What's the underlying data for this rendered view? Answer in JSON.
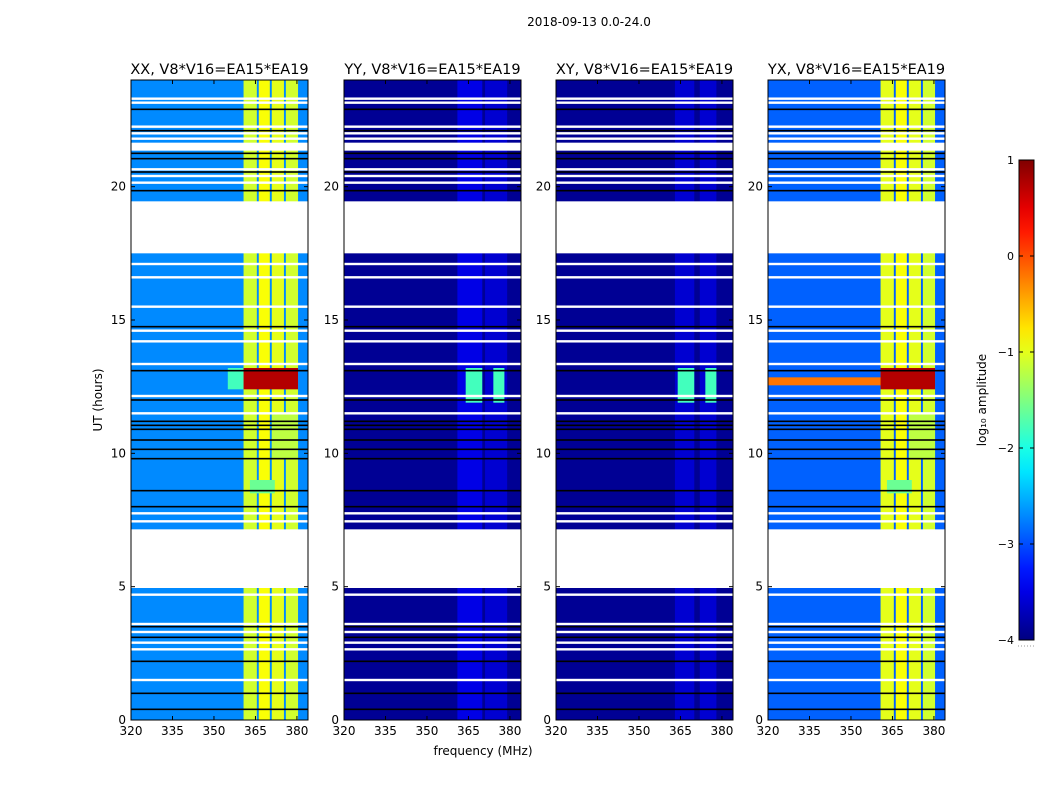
{
  "chart_data": {
    "type": "heatmap",
    "title": "2018-09-13 0.0-24.0",
    "xlabel": "frequency (MHz)",
    "ylabel": "UT (hours)",
    "xlim": [
      320,
      384
    ],
    "ylim": [
      0,
      24
    ],
    "xticks": [
      "320",
      "335",
      "350",
      "365",
      "380"
    ],
    "xtick_values": [
      320,
      335,
      350,
      365,
      380
    ],
    "yticks": [
      "0",
      "5",
      "10",
      "15",
      "20"
    ],
    "ytick_values": [
      0,
      5,
      10,
      15,
      20
    ],
    "colorbar": {
      "label": "log₁₀ amplitude",
      "range": [
        -4,
        1
      ],
      "ticks": [
        "1",
        "0",
        "−1",
        "−2",
        "−3",
        "−4"
      ],
      "tick_values": [
        1,
        0,
        -1,
        -2,
        -3,
        -4
      ],
      "colormap": "jet"
    },
    "time_gaps": [
      [
        17.5,
        19.45
      ],
      [
        4.95,
        7.15
      ],
      [
        21.35,
        21.65
      ]
    ],
    "flagged_white_lines": [
      23.3,
      23.15,
      22.25,
      22.0,
      21.8,
      20.65,
      20.4,
      20.15,
      17.1,
      16.6,
      15.5,
      14.6,
      14.2,
      13.35,
      12.15,
      11.5,
      7.75,
      7.45,
      4.7,
      3.6,
      3.3,
      2.9,
      2.65,
      1.5
    ],
    "flagged_black_lines": [
      22.9,
      22.1,
      21.25,
      21.05,
      20.55,
      19.85,
      14.75,
      13.1,
      12.0,
      11.2,
      11.05,
      10.9,
      10.5,
      10.15,
      9.8,
      8.6,
      8.0,
      3.5,
      3.1,
      2.2,
      1.0,
      0.4
    ],
    "panels": [
      {
        "title": "XX, V8*V16=EA15*EA19",
        "background_level": -2.7,
        "rfi_bands": [
          {
            "f": [
              360.7,
              365.5
            ],
            "level": -1.1
          },
          {
            "f": [
              366.2,
              370.2
            ],
            "level": -0.9
          },
          {
            "f": [
              370.9,
              375.3
            ],
            "level": -1.0
          },
          {
            "f": [
              376.0,
              380.4
            ],
            "level": -1.1
          }
        ],
        "events": [
          {
            "t": [
              12.4,
              13.2
            ],
            "f": [
              355,
              360.7
            ],
            "level": -1.8
          },
          {
            "t": [
              12.4,
              13.2
            ],
            "f": [
              360.7,
              380.4
            ],
            "level": 0.75
          },
          {
            "t": [
              8.5,
              9.0
            ],
            "f": [
              363,
              372
            ],
            "level": -1.6
          },
          {
            "t": [
              9.8,
              11.5
            ],
            "f": [
              371,
              380.4
            ],
            "level": -1.2
          }
        ]
      },
      {
        "title": "YY, V8*V16=EA15*EA19",
        "background_level": -3.9,
        "rfi_bands": [
          {
            "f": [
              361,
              370
            ],
            "level": -3.5
          },
          {
            "f": [
              371,
              379
            ],
            "level": -3.6
          }
        ],
        "events": [
          {
            "t": [
              11.9,
              13.2
            ],
            "f": [
              364,
              370
            ],
            "level": -1.8
          },
          {
            "t": [
              11.9,
              13.2
            ],
            "f": [
              374,
              378
            ],
            "level": -1.8
          }
        ]
      },
      {
        "title": "XY, V8*V16=EA15*EA19",
        "background_level": -3.9,
        "rfi_bands": [
          {
            "f": [
              363,
              370
            ],
            "level": -3.6
          },
          {
            "f": [
              372,
              378
            ],
            "level": -3.6
          }
        ],
        "events": [
          {
            "t": [
              11.9,
              13.2
            ],
            "f": [
              364,
              370
            ],
            "level": -1.8
          },
          {
            "t": [
              11.9,
              13.2
            ],
            "f": [
              374,
              378
            ],
            "level": -1.8
          }
        ]
      },
      {
        "title": "YX, V8*V16=EA15*EA19",
        "background_level": -2.9,
        "rfi_bands": [
          {
            "f": [
              360.7,
              365.5
            ],
            "level": -1.0
          },
          {
            "f": [
              366.2,
              370.2
            ],
            "level": -0.9
          },
          {
            "f": [
              370.9,
              375.3
            ],
            "level": -1.0
          },
          {
            "f": [
              376.0,
              380.4
            ],
            "level": -1.1
          }
        ],
        "events": [
          {
            "t": [
              12.55,
              12.85
            ],
            "f": [
              320,
              360.7
            ],
            "level": -0.2
          },
          {
            "t": [
              12.4,
              13.2
            ],
            "f": [
              360.7,
              380.4
            ],
            "level": 0.75
          },
          {
            "t": [
              8.5,
              9.0
            ],
            "f": [
              363,
              372
            ],
            "level": -1.6
          },
          {
            "t": [
              9.8,
              11.5
            ],
            "f": [
              371,
              380.4
            ],
            "level": -1.2
          }
        ]
      }
    ]
  }
}
